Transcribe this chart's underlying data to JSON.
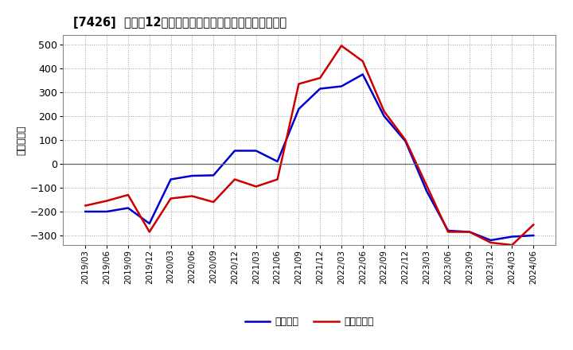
{
  "title": "[7426]  利益だ12か月移動合計の対前年同期増減額の推移",
  "ylabel": "（百万円）",
  "xlabel_labels": [
    "2019/03",
    "2019/06",
    "2019/09",
    "2019/12",
    "2020/03",
    "2020/06",
    "2020/09",
    "2020/12",
    "2021/03",
    "2021/06",
    "2021/09",
    "2021/12",
    "2022/03",
    "2022/06",
    "2022/09",
    "2022/12",
    "2023/03",
    "2023/06",
    "2023/09",
    "2023/12",
    "2024/03",
    "2024/06"
  ],
  "ylim": [
    -340,
    540
  ],
  "yticks": [
    -300,
    -200,
    -100,
    0,
    100,
    200,
    300,
    400,
    500
  ],
  "legend_labels": [
    "経常利益",
    "当期純利益"
  ],
  "line_colors": [
    "#0000cc",
    "#cc0000"
  ],
  "background_color": "#ffffff",
  "plot_bg_color": "#ffffff",
  "grid_color": "#999999",
  "series_keiri": [
    -200,
    -200,
    -185,
    -250,
    -65,
    -50,
    -48,
    55,
    55,
    10,
    230,
    315,
    325,
    375,
    200,
    95,
    -115,
    -280,
    -285,
    -320,
    -305,
    -300
  ],
  "series_junri": [
    -175,
    -155,
    -130,
    -285,
    -145,
    -135,
    -160,
    -65,
    -95,
    -65,
    335,
    360,
    495,
    430,
    220,
    100,
    -92,
    -285,
    -285,
    -330,
    -340,
    -255
  ]
}
